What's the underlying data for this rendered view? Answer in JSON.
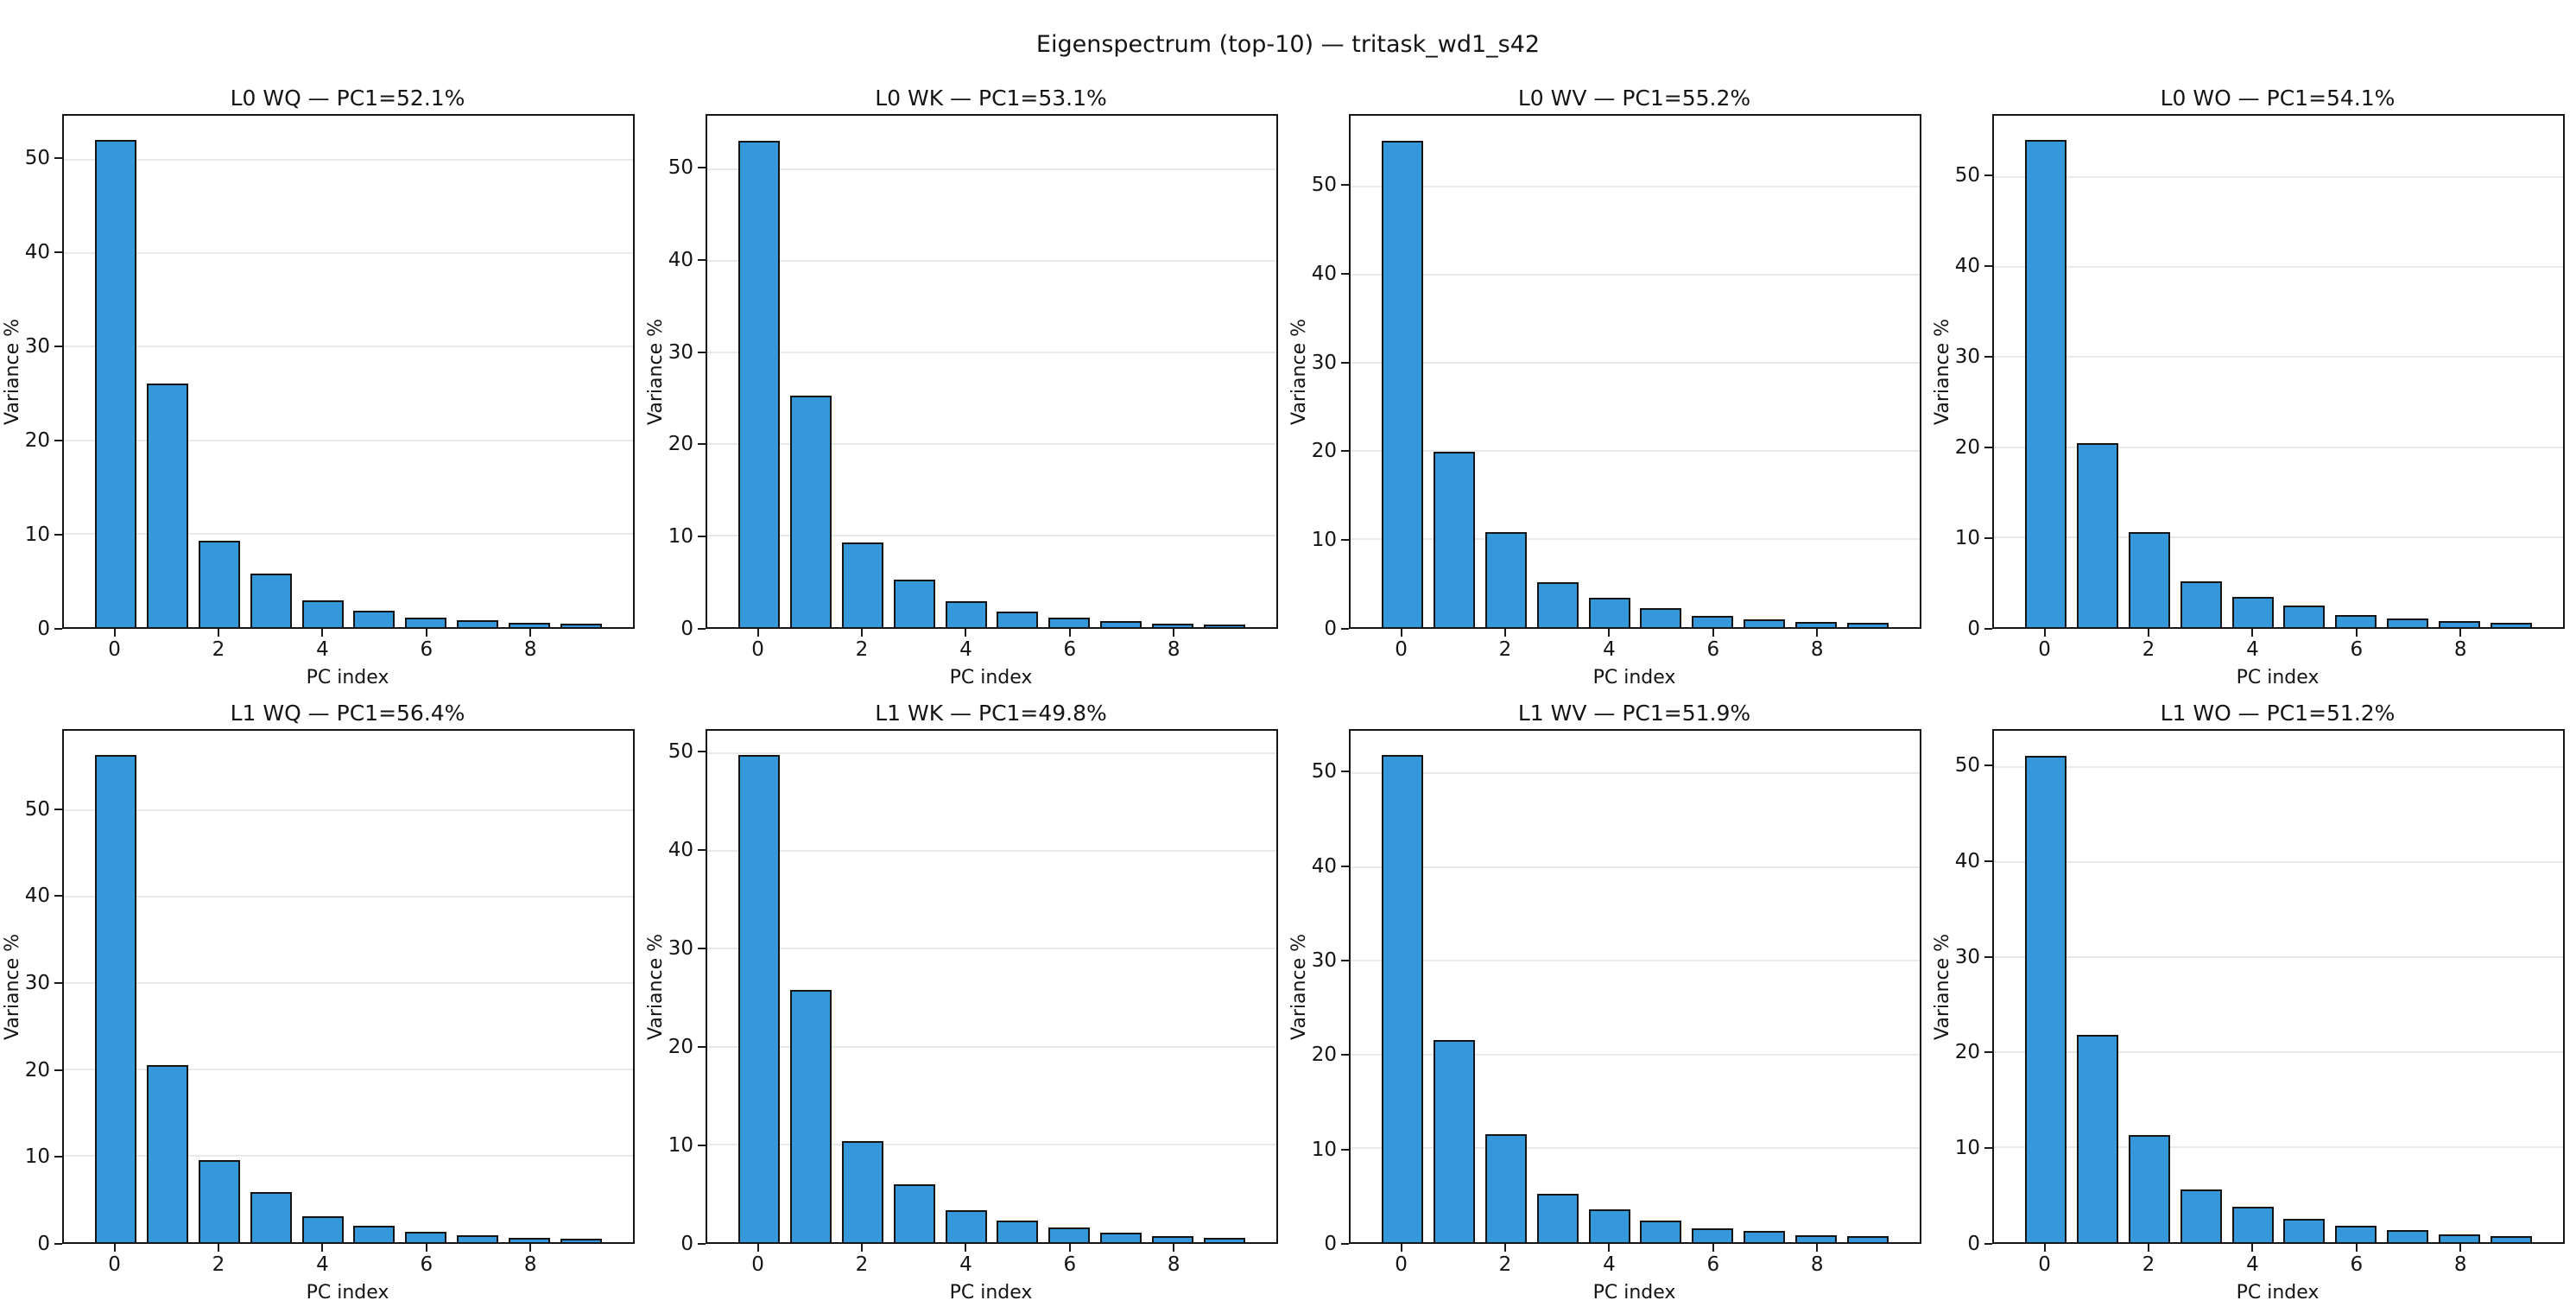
{
  "figure": {
    "suptitle": "Eigenspectrum (top-10) — tritask_wd1_s42",
    "background": "#ffffff",
    "colors": {
      "bar_fill": "#3498db",
      "bar_edge": "#141414",
      "grid": "#e9e9e9",
      "spine": "#161616",
      "text": "#141414"
    },
    "grid_layout": "2 rows x 4 cols"
  },
  "chart_data": [
    {
      "type": "bar",
      "title": "L0 WQ — PC1=52.1%",
      "layer": "L0",
      "matrix": "WQ",
      "pc1_percent": 52.1,
      "xlabel": "PC index",
      "ylabel": "Variance %",
      "categories": [
        0,
        1,
        2,
        3,
        4,
        5,
        6,
        7,
        8,
        9
      ],
      "values": [
        52.1,
        26.1,
        9.2,
        5.7,
        2.9,
        1.8,
        1.0,
        0.7,
        0.45,
        0.35
      ],
      "ylim": [
        0,
        54.7
      ],
      "yticks": [
        0,
        10,
        20,
        30,
        40,
        50
      ],
      "xticks": [
        0,
        2,
        4,
        6,
        8
      ],
      "grid": true,
      "legend": "none"
    },
    {
      "type": "bar",
      "title": "L0 WK — PC1=53.1%",
      "layer": "L0",
      "matrix": "WK",
      "pc1_percent": 53.1,
      "xlabel": "PC index",
      "ylabel": "Variance %",
      "categories": [
        0,
        1,
        2,
        3,
        4,
        5,
        6,
        7,
        8,
        9
      ],
      "values": [
        53.1,
        25.3,
        9.2,
        5.2,
        2.8,
        1.7,
        1.0,
        0.65,
        0.4,
        0.3
      ],
      "ylim": [
        0,
        55.8
      ],
      "yticks": [
        0,
        10,
        20,
        30,
        40,
        50
      ],
      "xticks": [
        0,
        2,
        4,
        6,
        8
      ],
      "grid": true,
      "legend": "none"
    },
    {
      "type": "bar",
      "title": "L0 WV — PC1=55.2%",
      "layer": "L0",
      "matrix": "WV",
      "pc1_percent": 55.2,
      "xlabel": "PC index",
      "ylabel": "Variance %",
      "categories": [
        0,
        1,
        2,
        3,
        4,
        5,
        6,
        7,
        8,
        9
      ],
      "values": [
        55.2,
        19.9,
        10.8,
        5.1,
        3.3,
        2.2,
        1.3,
        0.9,
        0.6,
        0.45
      ],
      "ylim": [
        0,
        58.0
      ],
      "yticks": [
        0,
        10,
        20,
        30,
        40,
        50
      ],
      "xticks": [
        0,
        2,
        4,
        6,
        8
      ],
      "grid": true,
      "legend": "none"
    },
    {
      "type": "bar",
      "title": "L0 WO — PC1=54.1%",
      "layer": "L0",
      "matrix": "WO",
      "pc1_percent": 54.1,
      "xlabel": "PC index",
      "ylabel": "Variance %",
      "categories": [
        0,
        1,
        2,
        3,
        4,
        5,
        6,
        7,
        8,
        9
      ],
      "values": [
        54.1,
        20.4,
        10.6,
        5.1,
        3.4,
        2.4,
        1.35,
        1.0,
        0.7,
        0.5
      ],
      "ylim": [
        0,
        56.8
      ],
      "yticks": [
        0,
        10,
        20,
        30,
        40,
        50
      ],
      "xticks": [
        0,
        2,
        4,
        6,
        8
      ],
      "grid": true,
      "legend": "none"
    },
    {
      "type": "bar",
      "title": "L1 WQ — PC1=56.4%",
      "layer": "L1",
      "matrix": "WQ",
      "pc1_percent": 56.4,
      "xlabel": "PC index",
      "ylabel": "Variance %",
      "categories": [
        0,
        1,
        2,
        3,
        4,
        5,
        6,
        7,
        8,
        9
      ],
      "values": [
        56.4,
        20.5,
        9.5,
        5.8,
        3.0,
        1.9,
        1.2,
        0.85,
        0.5,
        0.4
      ],
      "ylim": [
        0,
        59.2
      ],
      "yticks": [
        0,
        10,
        20,
        30,
        40,
        50
      ],
      "xticks": [
        0,
        2,
        4,
        6,
        8
      ],
      "grid": true,
      "legend": "none"
    },
    {
      "type": "bar",
      "title": "L1 WK — PC1=49.8%",
      "layer": "L1",
      "matrix": "WK",
      "pc1_percent": 49.8,
      "xlabel": "PC index",
      "ylabel": "Variance %",
      "categories": [
        0,
        1,
        2,
        3,
        4,
        5,
        6,
        7,
        8,
        9
      ],
      "values": [
        49.8,
        25.8,
        10.3,
        5.9,
        3.3,
        2.2,
        1.5,
        1.0,
        0.6,
        0.4
      ],
      "ylim": [
        0,
        52.3
      ],
      "yticks": [
        0,
        10,
        20,
        30,
        40,
        50
      ],
      "xticks": [
        0,
        2,
        4,
        6,
        8
      ],
      "grid": true,
      "legend": "none"
    },
    {
      "type": "bar",
      "title": "L1 WV — PC1=51.9%",
      "layer": "L1",
      "matrix": "WV",
      "pc1_percent": 51.9,
      "xlabel": "PC index",
      "ylabel": "Variance %",
      "categories": [
        0,
        1,
        2,
        3,
        4,
        5,
        6,
        7,
        8,
        9
      ],
      "values": [
        51.9,
        21.5,
        11.5,
        5.2,
        3.5,
        2.3,
        1.5,
        1.2,
        0.75,
        0.65
      ],
      "ylim": [
        0,
        54.5
      ],
      "yticks": [
        0,
        10,
        20,
        30,
        40,
        50
      ],
      "xticks": [
        0,
        2,
        4,
        6,
        8
      ],
      "grid": true,
      "legend": "none"
    },
    {
      "type": "bar",
      "title": "L1 WO — PC1=51.2%",
      "layer": "L1",
      "matrix": "WO",
      "pc1_percent": 51.2,
      "xlabel": "PC index",
      "ylabel": "Variance %",
      "categories": [
        0,
        1,
        2,
        3,
        4,
        5,
        6,
        7,
        8,
        9
      ],
      "values": [
        51.2,
        21.8,
        11.3,
        5.5,
        3.7,
        2.5,
        1.7,
        1.3,
        0.85,
        0.65
      ],
      "ylim": [
        0,
        53.8
      ],
      "yticks": [
        0,
        10,
        20,
        30,
        40,
        50
      ],
      "xticks": [
        0,
        2,
        4,
        6,
        8
      ],
      "grid": true,
      "legend": "none"
    }
  ]
}
